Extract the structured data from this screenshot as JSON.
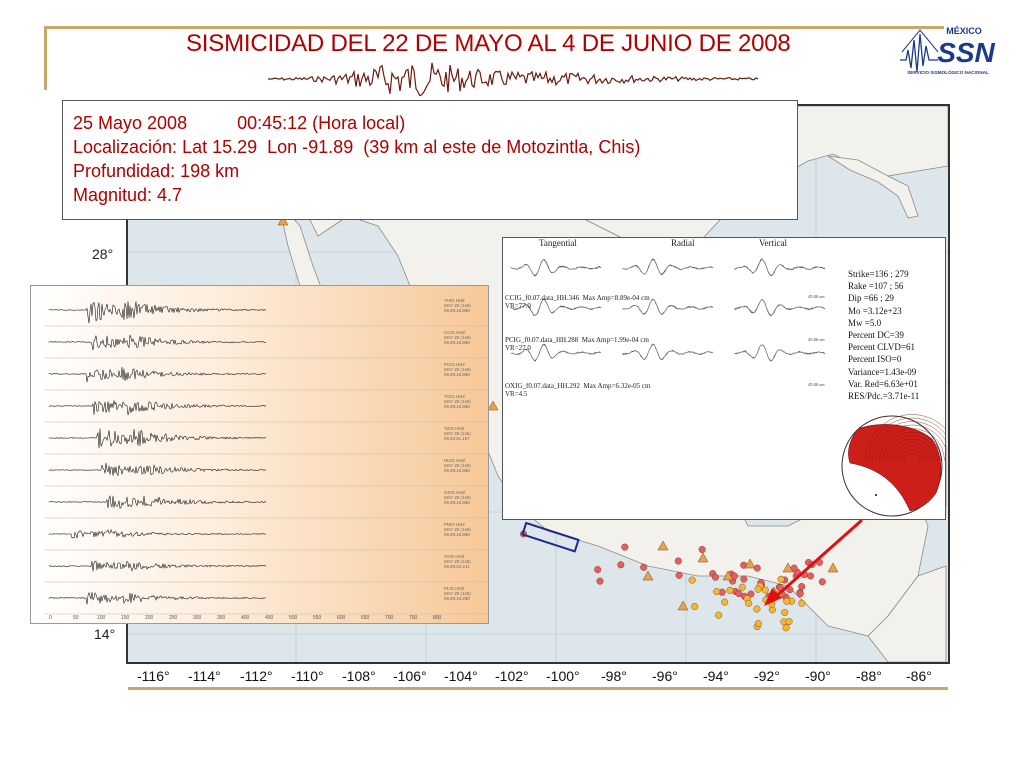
{
  "title": "SISMICIDAD DEL 22 DE MAYO AL 4 DE JUNIO DE 2008",
  "logo": {
    "country": "MÉXICO",
    "name": "SSN",
    "subtitle": "SERVICIO SISMOLÓGICO NACIONAL"
  },
  "event": {
    "date_time": "25 Mayo 2008          00:45:12 (Hora local)",
    "location": "Localización: Lat 15.29  Lon -91.89  (39 km al este de Motozintla, Chis)",
    "depth": "Profundidad: 198 km",
    "magnitude": "Magnitud: 4.7"
  },
  "map": {
    "latitude_labels": [
      "28°",
      "14°"
    ],
    "longitude_labels": [
      "-116°",
      "-114°",
      "-112°",
      "-110°",
      "-108°",
      "-106°",
      "-104°",
      "-102°",
      "-100°",
      "-98°",
      "-96°",
      "-94°",
      "-92°",
      "-90°",
      "-88°",
      "-86°"
    ],
    "colors": {
      "epicenter_red": "#e06060",
      "epicenter_yellow": "#f2b830",
      "station_triangle": "#e8a24a",
      "sea": "#dde6ea",
      "land": "#f3f1ec"
    }
  },
  "moment_tensor": {
    "columns": [
      "Tangential",
      "Radial",
      "Vertical"
    ],
    "stations": [
      {
        "line1": "CCIG_f0.07.data_HH.346  Max Amp=8.89e-04 cm",
        "line2": "VR=77.0"
      },
      {
        "line1": "PCIG_f0.07.data_HH.288  Max Amp=1.99e-04 cm",
        "line2": "VR=27.0"
      },
      {
        "line1": "OXIG_f0.07.data_HH.292  Max Amp=6.32e-05 cm",
        "line2": "VR=4.5"
      }
    ],
    "time_scale": "45.00 sec",
    "parameters": [
      "Strike=136 ; 279",
      "Rake  =107 ; 56",
      "Dip   =66 ; 29",
      "Mo    =3.12e+23",
      "Mw    =5.0",
      "Percent DC=39",
      "Percent CLVD=61",
      "Percent ISO=0",
      "Variance=1.43e-09",
      "Var. Red=6.63e+01",
      "RES/Pdc.=3.71e-11"
    ],
    "beachball_color": "#cc1f1a"
  },
  "seismograms": {
    "traces": [
      {
        "header": "THIG HHZ\nMAY 25 (146)\n05:45:15.988"
      },
      {
        "header": "CCIG HHZ\nMAY 25 (146)\n05:45:15.988"
      },
      {
        "header": "PCIG HHZ\nMAY 25 (146)\n05:45:15.988"
      },
      {
        "header": "TGIG HHZ\nMAY 25 (146)\n05:45:15.988"
      },
      {
        "header": "TZIG HHZ\nMAY 25 (146)\n05:44:51.157"
      },
      {
        "header": "HUIG HHZ\nMAY 25 (146)\n05:45:15.988"
      },
      {
        "header": "OXIG HHZ\nMAY 25 (146)\n05:45:15.988"
      },
      {
        "header": "PNIG HHZ\nMAY 25 (146)\n05:45:15.988"
      },
      {
        "header": "YAIG HHZ\nMAY 25 (146)\n05:45:02.441"
      },
      {
        "header": "PLIG HHZ\nMAY 25 (146)\n05:45:19.289"
      }
    ],
    "time_axis": [
      "0",
      "50",
      "100",
      "150",
      "200",
      "250",
      "300",
      "350",
      "400",
      "450",
      "500",
      "550",
      "600",
      "650",
      "700",
      "750",
      "800"
    ]
  }
}
